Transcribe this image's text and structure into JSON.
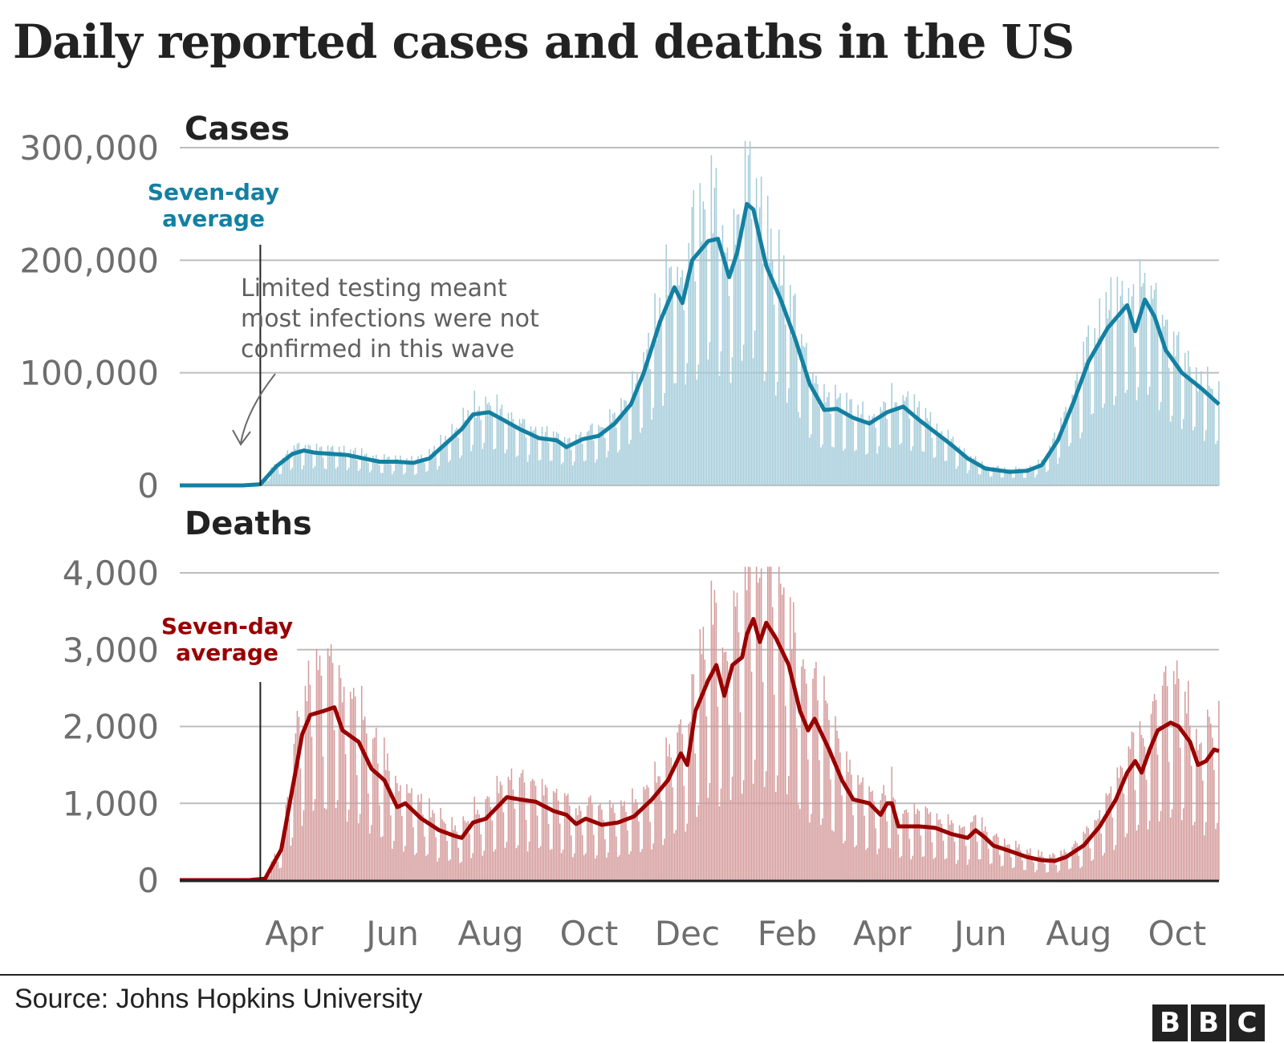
{
  "title": "Daily reported cases and deaths in the US",
  "footer": {
    "source": "Source: Johns Hopkins University",
    "logo_letters": [
      "B",
      "B",
      "C"
    ]
  },
  "colors": {
    "cases_line": "#1380a1",
    "cases_bars": "#a3cbd9",
    "deaths_line": "#990000",
    "deaths_bars": "#d49a9a",
    "gridline": "#bdbdbd",
    "tick_text": "#6e6e6e",
    "text": "#222222"
  },
  "chart_data": [
    {
      "type": "bar",
      "panel": "cases",
      "title": "Cases",
      "overlay": "line",
      "series_label": "Seven-day average",
      "annotation": [
        "Limited testing meant",
        "most infections were not",
        "confirmed in this wave"
      ],
      "x_start": "2020-01-22",
      "x_end": "2021-10-28",
      "marker_date": "2020-03-12",
      "xticks": [
        {
          "label": "Apr",
          "date": "2020-04-01"
        },
        {
          "label": "Jun",
          "date": "2020-06-01"
        },
        {
          "label": "Aug",
          "date": "2020-08-01"
        },
        {
          "label": "Oct",
          "date": "2020-10-01"
        },
        {
          "label": "Dec",
          "date": "2020-12-01"
        },
        {
          "label": "Feb",
          "date": "2021-02-01"
        },
        {
          "label": "Apr",
          "date": "2021-04-01"
        },
        {
          "label": "Jun",
          "date": "2021-06-01"
        },
        {
          "label": "Aug",
          "date": "2021-08-01"
        },
        {
          "label": "Oct",
          "date": "2021-10-01"
        }
      ],
      "yticks": [
        {
          "label": "0",
          "value": 0
        },
        {
          "label": "100,000",
          "value": 100000
        },
        {
          "label": "200,000",
          "value": 200000
        },
        {
          "label": "300,000",
          "value": 300000
        }
      ],
      "ylim": [
        0,
        300000
      ],
      "grid": true,
      "seven_day_average": [
        [
          "2020-01-22",
          0
        ],
        [
          "2020-03-01",
          0
        ],
        [
          "2020-03-12",
          1000
        ],
        [
          "2020-03-22",
          17000
        ],
        [
          "2020-04-01",
          28000
        ],
        [
          "2020-04-08",
          31000
        ],
        [
          "2020-04-15",
          29000
        ],
        [
          "2020-04-25",
          28000
        ],
        [
          "2020-05-05",
          27000
        ],
        [
          "2020-05-15",
          24000
        ],
        [
          "2020-05-25",
          21000
        ],
        [
          "2020-06-05",
          21000
        ],
        [
          "2020-06-15",
          20000
        ],
        [
          "2020-06-25",
          24000
        ],
        [
          "2020-07-05",
          37000
        ],
        [
          "2020-07-15",
          50000
        ],
        [
          "2020-07-22",
          63000
        ],
        [
          "2020-08-01",
          65000
        ],
        [
          "2020-08-10",
          58000
        ],
        [
          "2020-08-20",
          50000
        ],
        [
          "2020-09-01",
          42000
        ],
        [
          "2020-09-12",
          40000
        ],
        [
          "2020-09-18",
          34000
        ],
        [
          "2020-09-28",
          41000
        ],
        [
          "2020-10-08",
          44000
        ],
        [
          "2020-10-18",
          55000
        ],
        [
          "2020-10-28",
          72000
        ],
        [
          "2020-11-05",
          100000
        ],
        [
          "2020-11-15",
          145000
        ],
        [
          "2020-11-24",
          176000
        ],
        [
          "2020-11-29",
          162000
        ],
        [
          "2020-12-05",
          200000
        ],
        [
          "2020-12-15",
          217000
        ],
        [
          "2020-12-21",
          219000
        ],
        [
          "2020-12-28",
          185000
        ],
        [
          "2021-01-02",
          207000
        ],
        [
          "2021-01-08",
          250000
        ],
        [
          "2021-01-12",
          245000
        ],
        [
          "2021-01-20",
          195000
        ],
        [
          "2021-01-29",
          165000
        ],
        [
          "2021-02-07",
          130000
        ],
        [
          "2021-02-16",
          90000
        ],
        [
          "2021-02-25",
          67000
        ],
        [
          "2021-03-05",
          68000
        ],
        [
          "2021-03-15",
          60000
        ],
        [
          "2021-03-25",
          55000
        ],
        [
          "2021-04-05",
          65000
        ],
        [
          "2021-04-15",
          70000
        ],
        [
          "2021-04-25",
          58000
        ],
        [
          "2021-05-05",
          47000
        ],
        [
          "2021-05-15",
          36000
        ],
        [
          "2021-05-25",
          24000
        ],
        [
          "2021-06-05",
          15000
        ],
        [
          "2021-06-20",
          12000
        ],
        [
          "2021-07-01",
          13000
        ],
        [
          "2021-07-10",
          18000
        ],
        [
          "2021-07-20",
          40000
        ],
        [
          "2021-07-30",
          75000
        ],
        [
          "2021-08-08",
          110000
        ],
        [
          "2021-08-20",
          140000
        ],
        [
          "2021-09-01",
          160000
        ],
        [
          "2021-09-06",
          137000
        ],
        [
          "2021-09-12",
          165000
        ],
        [
          "2021-09-18",
          150000
        ],
        [
          "2021-09-25",
          120000
        ],
        [
          "2021-10-05",
          100000
        ],
        [
          "2021-10-18",
          85000
        ],
        [
          "2021-10-28",
          72000
        ]
      ]
    },
    {
      "type": "bar",
      "panel": "deaths",
      "title": "Deaths",
      "overlay": "line",
      "series_label": "Seven-day average",
      "x_start": "2020-01-22",
      "x_end": "2021-10-28",
      "marker_date": "2020-03-12",
      "yticks": [
        {
          "label": "0",
          "value": 0
        },
        {
          "label": "1,000",
          "value": 1000
        },
        {
          "label": "2,000",
          "value": 2000
        },
        {
          "label": "3,000",
          "value": 3000
        },
        {
          "label": "4,000",
          "value": 4000
        }
      ],
      "ylim": [
        0,
        4000
      ],
      "grid": true,
      "seven_day_average": [
        [
          "2020-01-22",
          0
        ],
        [
          "2020-03-05",
          0
        ],
        [
          "2020-03-15",
          20
        ],
        [
          "2020-03-25",
          400
        ],
        [
          "2020-04-01",
          1200
        ],
        [
          "2020-04-07",
          1900
        ],
        [
          "2020-04-12",
          2150
        ],
        [
          "2020-04-20",
          2200
        ],
        [
          "2020-04-27",
          2250
        ],
        [
          "2020-05-02",
          1950
        ],
        [
          "2020-05-12",
          1800
        ],
        [
          "2020-05-20",
          1450
        ],
        [
          "2020-05-28",
          1300
        ],
        [
          "2020-06-05",
          950
        ],
        [
          "2020-06-10",
          1000
        ],
        [
          "2020-06-20",
          800
        ],
        [
          "2020-07-01",
          650
        ],
        [
          "2020-07-10",
          580
        ],
        [
          "2020-07-15",
          550
        ],
        [
          "2020-07-22",
          750
        ],
        [
          "2020-07-30",
          800
        ],
        [
          "2020-08-06",
          950
        ],
        [
          "2020-08-12",
          1080
        ],
        [
          "2020-08-20",
          1050
        ],
        [
          "2020-08-30",
          1020
        ],
        [
          "2020-09-10",
          900
        ],
        [
          "2020-09-18",
          850
        ],
        [
          "2020-09-24",
          730
        ],
        [
          "2020-09-30",
          800
        ],
        [
          "2020-10-10",
          720
        ],
        [
          "2020-10-20",
          750
        ],
        [
          "2020-10-30",
          830
        ],
        [
          "2020-11-10",
          1050
        ],
        [
          "2020-11-20",
          1300
        ],
        [
          "2020-11-28",
          1650
        ],
        [
          "2020-12-02",
          1500
        ],
        [
          "2020-12-07",
          2200
        ],
        [
          "2020-12-15",
          2600
        ],
        [
          "2020-12-20",
          2800
        ],
        [
          "2020-12-25",
          2400
        ],
        [
          "2020-12-30",
          2800
        ],
        [
          "2021-01-05",
          2900
        ],
        [
          "2021-01-08",
          3200
        ],
        [
          "2021-01-12",
          3400
        ],
        [
          "2021-01-16",
          3100
        ],
        [
          "2021-01-20",
          3350
        ],
        [
          "2021-01-26",
          3150
        ],
        [
          "2021-02-03",
          2800
        ],
        [
          "2021-02-10",
          2200
        ],
        [
          "2021-02-15",
          1950
        ],
        [
          "2021-02-19",
          2100
        ],
        [
          "2021-02-28",
          1700
        ],
        [
          "2021-03-08",
          1300
        ],
        [
          "2021-03-15",
          1050
        ],
        [
          "2021-03-25",
          1000
        ],
        [
          "2021-04-01",
          850
        ],
        [
          "2021-04-05",
          1000
        ],
        [
          "2021-04-08",
          1000
        ],
        [
          "2021-04-12",
          700
        ],
        [
          "2021-04-25",
          700
        ],
        [
          "2021-05-05",
          680
        ],
        [
          "2021-05-15",
          600
        ],
        [
          "2021-05-25",
          550
        ],
        [
          "2021-05-30",
          650
        ],
        [
          "2021-06-05",
          550
        ],
        [
          "2021-06-10",
          450
        ],
        [
          "2021-06-20",
          380
        ],
        [
          "2021-07-01",
          300
        ],
        [
          "2021-07-10",
          260
        ],
        [
          "2021-07-18",
          250
        ],
        [
          "2021-07-25",
          300
        ],
        [
          "2021-08-05",
          450
        ],
        [
          "2021-08-15",
          700
        ],
        [
          "2021-08-25",
          1050
        ],
        [
          "2021-09-01",
          1400
        ],
        [
          "2021-09-06",
          1550
        ],
        [
          "2021-09-10",
          1400
        ],
        [
          "2021-09-15",
          1700
        ],
        [
          "2021-09-20",
          1950
        ],
        [
          "2021-09-28",
          2050
        ],
        [
          "2021-10-03",
          2000
        ],
        [
          "2021-10-10",
          1800
        ],
        [
          "2021-10-15",
          1500
        ],
        [
          "2021-10-20",
          1550
        ],
        [
          "2021-10-25",
          1700
        ],
        [
          "2021-10-28",
          1680
        ]
      ]
    }
  ]
}
